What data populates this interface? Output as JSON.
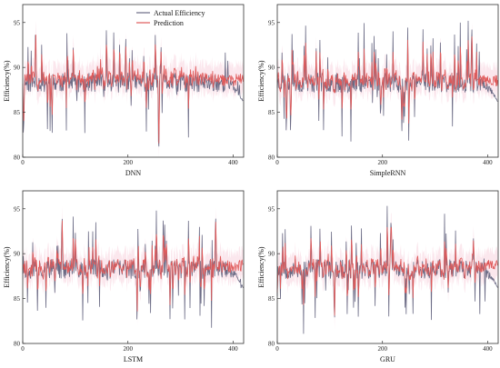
{
  "chart_data": [
    {
      "type": "line",
      "xlabel": "DNN",
      "ylabel": "Efficiency(%)",
      "xlim": [
        0,
        420
      ],
      "ylim": [
        80,
        97
      ],
      "xticks": [
        "0",
        "200",
        "400"
      ],
      "yticks": [
        "80",
        "85",
        "90",
        "95"
      ],
      "show_legend": true,
      "legend_position": "top-right",
      "band": true,
      "seed": 11,
      "series": [
        {
          "name": "Actual Efficiency",
          "color": "#6b6b85",
          "base": 88.3,
          "ends_with_drop": true
        },
        {
          "name": "Prediction",
          "color": "#e05a5a",
          "base": 88.8
        }
      ]
    },
    {
      "type": "line",
      "xlabel": "SimpleRNN",
      "ylabel": "Efficiency(%)",
      "xlim": [
        0,
        420
      ],
      "ylim": [
        80,
        97
      ],
      "xticks": [
        "0",
        "200",
        "400"
      ],
      "yticks": [
        "80",
        "85",
        "90",
        "95"
      ],
      "show_legend": false,
      "band": true,
      "seed": 23,
      "series": [
        {
          "name": "Actual Efficiency",
          "color": "#6b6b85",
          "base": 88.3,
          "ends_with_drop": true
        },
        {
          "name": "Prediction",
          "color": "#e05a5a",
          "base": 88.6
        }
      ]
    },
    {
      "type": "line",
      "xlabel": "LSTM",
      "ylabel": "Efficiency(%)",
      "xlim": [
        0,
        420
      ],
      "ylim": [
        80,
        97
      ],
      "xticks": [
        "0",
        "200",
        "400"
      ],
      "yticks": [
        "80",
        "85",
        "90",
        "95"
      ],
      "show_legend": false,
      "band": true,
      "seed": 37,
      "series": [
        {
          "name": "Actual Efficiency",
          "color": "#6b6b85",
          "base": 88.3,
          "ends_with_drop": true
        },
        {
          "name": "Prediction",
          "color": "#e05a5a",
          "base": 88.5
        }
      ]
    },
    {
      "type": "line",
      "xlabel": "GRU",
      "ylabel": "Efficiency(%)",
      "xlim": [
        0,
        420
      ],
      "ylim": [
        80,
        97
      ],
      "xticks": [
        "0",
        "200",
        "400"
      ],
      "yticks": [
        "80",
        "85",
        "90",
        "95"
      ],
      "show_legend": false,
      "band": true,
      "seed": 53,
      "series": [
        {
          "name": "Actual Efficiency",
          "color": "#6b6b85",
          "base": 88.3,
          "ends_with_drop": true
        },
        {
          "name": "Prediction",
          "color": "#e05a5a",
          "base": 88.5
        }
      ]
    }
  ]
}
